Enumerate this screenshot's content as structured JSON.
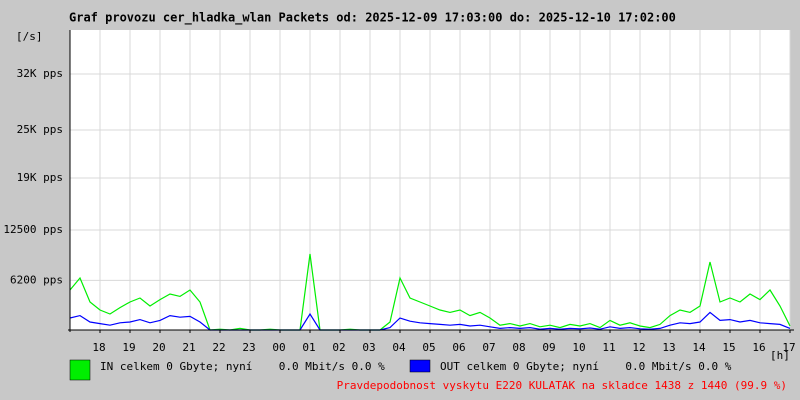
{
  "chart_data": {
    "type": "line",
    "title": "Graf provozu cer_hladka_wlan Packets od: 2025-12-09 17:03:00 do: 2025-12-10 17:02:00",
    "y_label": "[/s]",
    "x_label": "[h]",
    "footer": "Pravdepodobnost vyskytu E220 KULATAK na skladce 1438 z 1440 (99.9 %)",
    "grid": true,
    "xlim": [
      0,
      1440
    ],
    "xticks": [
      {
        "value": 60,
        "label": "18"
      },
      {
        "value": 120,
        "label": "19"
      },
      {
        "value": 180,
        "label": "20"
      },
      {
        "value": 240,
        "label": "21"
      },
      {
        "value": 300,
        "label": "22"
      },
      {
        "value": 360,
        "label": "23"
      },
      {
        "value": 420,
        "label": "00"
      },
      {
        "value": 480,
        "label": "01"
      },
      {
        "value": 540,
        "label": "02"
      },
      {
        "value": 600,
        "label": "03"
      },
      {
        "value": 660,
        "label": "04"
      },
      {
        "value": 720,
        "label": "05"
      },
      {
        "value": 780,
        "label": "06"
      },
      {
        "value": 840,
        "label": "07"
      },
      {
        "value": 900,
        "label": "08"
      },
      {
        "value": 960,
        "label": "09"
      },
      {
        "value": 1020,
        "label": "10"
      },
      {
        "value": 1080,
        "label": "11"
      },
      {
        "value": 1140,
        "label": "12"
      },
      {
        "value": 1200,
        "label": "13"
      },
      {
        "value": 1260,
        "label": "14"
      },
      {
        "value": 1320,
        "label": "15"
      },
      {
        "value": 1380,
        "label": "16"
      },
      {
        "value": 1440,
        "label": "17"
      }
    ],
    "ylim": [
      0,
      37500
    ],
    "yticks": [
      {
        "value": 6200,
        "label": "6200 pps"
      },
      {
        "value": 12500,
        "label": "12500 pps"
      },
      {
        "value": 19000,
        "label": "19K pps"
      },
      {
        "value": 25000,
        "label": "25K pps"
      },
      {
        "value": 32000,
        "label": "32K pps"
      }
    ],
    "x": [
      0,
      20,
      40,
      60,
      80,
      100,
      120,
      140,
      160,
      180,
      200,
      220,
      240,
      260,
      280,
      300,
      320,
      340,
      360,
      380,
      400,
      420,
      440,
      460,
      480,
      500,
      520,
      540,
      560,
      580,
      600,
      620,
      640,
      660,
      680,
      700,
      720,
      740,
      760,
      780,
      800,
      820,
      840,
      860,
      880,
      900,
      920,
      940,
      960,
      980,
      1000,
      1020,
      1040,
      1060,
      1080,
      1100,
      1120,
      1140,
      1160,
      1180,
      1200,
      1220,
      1240,
      1260,
      1280,
      1300,
      1320,
      1340,
      1360,
      1380,
      1400,
      1420,
      1440
    ],
    "series": [
      {
        "name": "IN celkem 0 Gbyte; nyní    0.0 Mbit/s 0.0 %",
        "color": "#00ee00",
        "values": [
          5000,
          6500,
          3500,
          2500,
          2000,
          2800,
          3500,
          4000,
          3000,
          3800,
          4500,
          4200,
          5000,
          3500,
          0,
          100,
          0,
          200,
          0,
          0,
          100,
          0,
          0,
          0,
          9500,
          0,
          0,
          0,
          100,
          0,
          0,
          0,
          1000,
          6500,
          4000,
          3500,
          3000,
          2500,
          2200,
          2500,
          1800,
          2200,
          1500,
          600,
          800,
          500,
          800,
          400,
          600,
          300,
          700,
          500,
          800,
          300,
          1200,
          600,
          900,
          500,
          300,
          700,
          1800,
          2500,
          2200,
          3000,
          8500,
          3500,
          4000,
          3500,
          4500,
          3800,
          5000,
          3000,
          500
        ]
      },
      {
        "name": "OUT celkem 0 Gbyte; nyní    0.0 Mbit/s 0.0 %",
        "color": "#0000ff",
        "values": [
          1500,
          1800,
          1000,
          800,
          600,
          900,
          1000,
          1300,
          900,
          1200,
          1800,
          1600,
          1700,
          1000,
          0,
          0,
          0,
          0,
          0,
          0,
          0,
          0,
          0,
          0,
          2000,
          0,
          0,
          0,
          0,
          0,
          0,
          0,
          300,
          1500,
          1100,
          900,
          800,
          700,
          600,
          700,
          500,
          600,
          400,
          200,
          300,
          200,
          300,
          100,
          200,
          100,
          200,
          150,
          250,
          100,
          400,
          200,
          300,
          150,
          100,
          200,
          600,
          900,
          800,
          1000,
          2200,
          1200,
          1300,
          1000,
          1200,
          900,
          800,
          700,
          200
        ]
      }
    ]
  }
}
